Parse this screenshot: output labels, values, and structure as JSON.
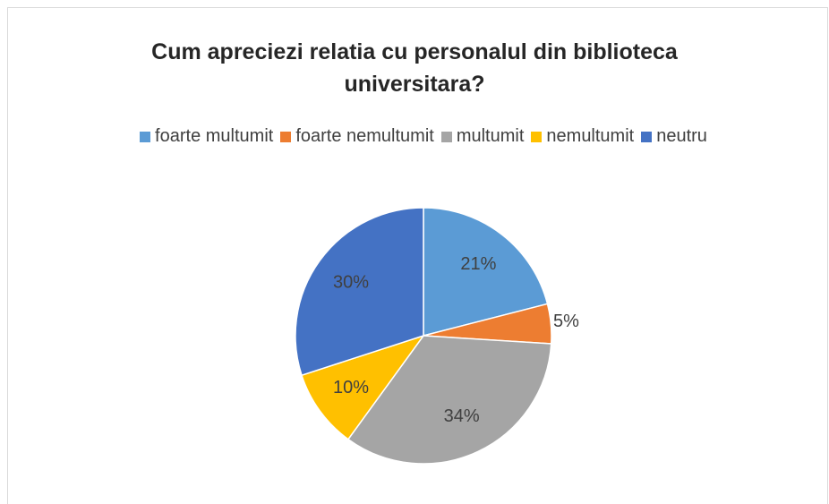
{
  "chart_data": {
    "type": "pie",
    "title": "Cum apreciezi relatia cu personalul din biblioteca universitara?",
    "categories": [
      "foarte multumit",
      "foarte nemultumit",
      "multumit",
      "nemultumit",
      "neutru"
    ],
    "values": [
      21,
      5,
      34,
      10,
      30
    ],
    "value_labels": [
      "21%",
      "5%",
      "34%",
      "10%",
      "30%"
    ],
    "colors": [
      "#5b9bd5",
      "#ed7d31",
      "#a5a5a5",
      "#ffc000",
      "#4472c4"
    ],
    "legend": "top"
  }
}
